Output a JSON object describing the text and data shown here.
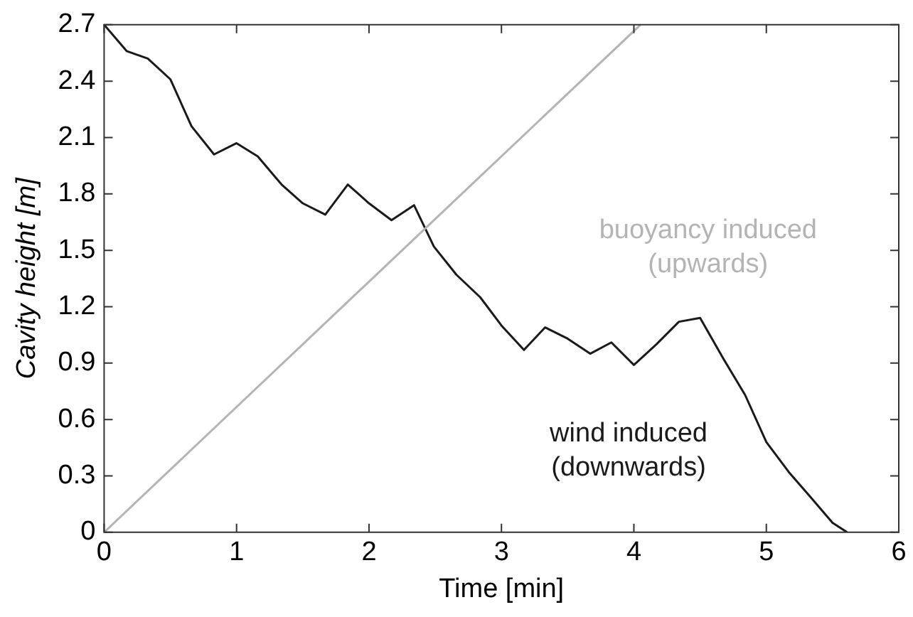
{
  "chart_data": {
    "type": "line",
    "xlabel": "Time [min]",
    "ylabel": "Cavity height [m]",
    "xlim": [
      0,
      6
    ],
    "xticks": [
      0,
      1,
      2,
      3,
      4,
      5,
      6
    ],
    "ylim": [
      0,
      2.7
    ],
    "yticks": [
      0,
      0.3,
      0.6,
      0.9,
      1.2,
      1.5,
      1.8,
      2.1,
      2.4,
      2.7
    ],
    "grid": false,
    "legend": false,
    "marker": "none",
    "line_style": "solid",
    "series": [
      {
        "name": "buoyancy induced\n(upwards)",
        "color": "#b4b4b4",
        "x": [
          0,
          4.05
        ],
        "values": [
          0,
          2.7
        ]
      },
      {
        "name": "wind induced\n(downwards)",
        "color": "#1a1a1a",
        "x": [
          0,
          0.17,
          0.33,
          0.5,
          0.66,
          0.83,
          1.0,
          1.16,
          1.34,
          1.5,
          1.67,
          1.84,
          2.0,
          2.17,
          2.34,
          2.49,
          2.66,
          2.84,
          3.0,
          3.17,
          3.33,
          3.5,
          3.67,
          3.83,
          4.0,
          4.17,
          4.34,
          4.5,
          4.67,
          4.84,
          5.0,
          5.17,
          5.33,
          5.5,
          5.61
        ],
        "values": [
          2.7,
          2.56,
          2.52,
          2.41,
          2.16,
          2.01,
          2.07,
          2.0,
          1.85,
          1.75,
          1.69,
          1.85,
          1.75,
          1.66,
          1.74,
          1.52,
          1.37,
          1.25,
          1.1,
          0.97,
          1.09,
          1.03,
          0.95,
          1.01,
          0.89,
          1.0,
          1.12,
          1.14,
          0.93,
          0.73,
          0.48,
          0.32,
          0.19,
          0.05,
          0
        ]
      }
    ]
  }
}
